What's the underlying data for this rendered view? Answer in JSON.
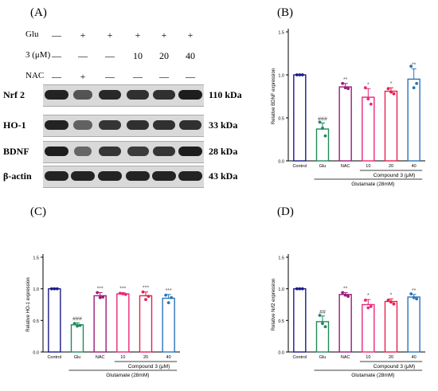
{
  "panel_a": {
    "letter": "(A)",
    "row_labels": [
      "Glu",
      "3 (μM)",
      "NAC"
    ],
    "treatment_signs": [
      [
        "—",
        "+",
        "+",
        "+",
        "+",
        "+"
      ],
      [
        "—",
        "—",
        "—",
        "10",
        "20",
        "40"
      ],
      [
        "—",
        "+",
        "—",
        "—",
        "—",
        "—"
      ]
    ],
    "blots": [
      {
        "protein": "Nrf 2",
        "size": "110 kDa",
        "intensity": [
          0.95,
          0.55,
          0.9,
          0.85,
          0.85,
          1.0
        ]
      },
      {
        "protein": "HO-1",
        "size": "33  kDa",
        "intensity": [
          0.95,
          0.45,
          0.8,
          0.85,
          0.85,
          0.85
        ]
      },
      {
        "protein": "BDNF",
        "size": "28  kDa",
        "intensity": [
          1.0,
          0.4,
          0.8,
          0.75,
          0.8,
          1.0
        ]
      },
      {
        "protein": "β-actin",
        "size": "43  kDa",
        "intensity": [
          0.95,
          0.95,
          0.95,
          0.95,
          0.95,
          0.95
        ]
      }
    ]
  },
  "chart_data": [
    {
      "letter": "(B)",
      "type": "bar",
      "categories": [
        "Control",
        "Glu",
        "NAC",
        "10",
        "20",
        "40"
      ],
      "values": [
        1.0,
        0.37,
        0.86,
        0.74,
        0.81,
        0.95
      ],
      "errors": [
        0.0,
        0.07,
        0.04,
        0.1,
        0.04,
        0.12
      ],
      "points": [
        [
          1.0,
          1.0,
          1.0
        ],
        [
          0.45,
          0.38,
          0.29
        ],
        [
          0.9,
          0.85,
          0.84
        ],
        [
          0.85,
          0.72,
          0.66
        ],
        [
          0.84,
          0.8,
          0.78
        ],
        [
          1.1,
          0.85,
          0.9
        ]
      ],
      "marks": [
        "",
        "###",
        "**",
        "*",
        "*",
        "**"
      ],
      "colors": [
        "#1a1a8c",
        "#1e8a5a",
        "#9b1b7a",
        "#e8287a",
        "#e81e4e",
        "#2b74b8"
      ],
      "ylabel": "Relative BDNF expression",
      "yticks": [
        "0.0",
        "0.5",
        "1.0",
        "1.5"
      ],
      "ylim": [
        0,
        1.5
      ],
      "compound_label": "Compound 3 (μM)",
      "glutamate_label": "Glutamate (28mM)"
    },
    {
      "letter": "(C)",
      "type": "bar",
      "categories": [
        "Control",
        "Glu",
        "NAC",
        "10",
        "20",
        "40"
      ],
      "values": [
        1.0,
        0.43,
        0.89,
        0.92,
        0.89,
        0.85
      ],
      "errors": [
        0.0,
        0.03,
        0.05,
        0.02,
        0.06,
        0.06
      ],
      "points": [
        [
          1.0,
          1.0,
          1.0
        ],
        [
          0.45,
          0.41,
          0.42
        ],
        [
          0.94,
          0.86,
          0.87
        ],
        [
          0.93,
          0.92,
          0.91
        ],
        [
          0.95,
          0.83,
          0.88
        ],
        [
          0.9,
          0.78,
          0.86
        ]
      ],
      "marks": [
        "",
        "###",
        "***",
        "***",
        "***",
        "***"
      ],
      "colors": [
        "#1a1a8c",
        "#1e8a5a",
        "#9b1b7a",
        "#e8287a",
        "#e81e4e",
        "#2b74b8"
      ],
      "ylabel": "Relative HO-1 expression",
      "yticks": [
        "0.0",
        "0.5",
        "1.0",
        "1.5"
      ],
      "ylim": [
        0,
        1.5
      ],
      "compound_label": "Compound 3 (μM)",
      "glutamate_label": "Glutamate (28mM)"
    },
    {
      "letter": "(D)",
      "type": "bar",
      "categories": [
        "Control",
        "Glu",
        "NAC",
        "10",
        "20",
        "40"
      ],
      "values": [
        1.0,
        0.48,
        0.91,
        0.75,
        0.8,
        0.87
      ],
      "errors": [
        0.0,
        0.09,
        0.03,
        0.08,
        0.04,
        0.04
      ],
      "points": [
        [
          1.0,
          1.0,
          1.0
        ],
        [
          0.58,
          0.45,
          0.4
        ],
        [
          0.94,
          0.9,
          0.88
        ],
        [
          0.82,
          0.7,
          0.72
        ],
        [
          0.82,
          0.79,
          0.76
        ],
        [
          0.92,
          0.86,
          0.84
        ]
      ],
      "marks": [
        "",
        "##",
        "**",
        "*",
        "*",
        "**"
      ],
      "colors": [
        "#1a1a8c",
        "#1e8a5a",
        "#9b1b7a",
        "#e8287a",
        "#e81e4e",
        "#2b74b8"
      ],
      "ylabel": "Relative Nrf2 expression",
      "yticks": [
        "0.0",
        "0.5",
        "1.0",
        "1.5"
      ],
      "ylim": [
        0,
        1.5
      ],
      "compound_label": "Compound 3 (μM)",
      "glutamate_label": "Glutamate (28mM)"
    }
  ]
}
